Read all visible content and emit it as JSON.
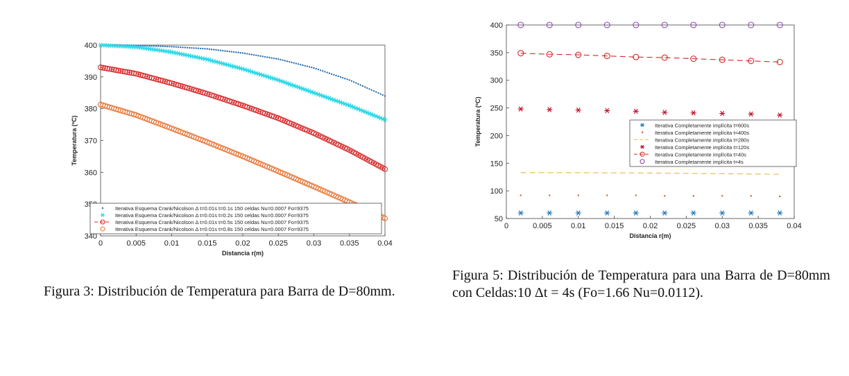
{
  "captions": {
    "fig3": "Figura 3: Distribución de Temperatura para Barra de D=80mm.",
    "fig5": "Figura 5: Distribución de Temperatura para una Barra de D=80mm con Celdas:10 Δt = 4s (Fo=1.66 Nu=0.0112)."
  },
  "chart_data": [
    {
      "type": "scatter",
      "title": "",
      "xlabel": "Distancia r(m)",
      "ylabel": "Temperatura (ºC)",
      "xlim": [
        0,
        0.04
      ],
      "ylim": [
        340,
        400
      ],
      "xticks": [
        "0",
        "0.005",
        "0.01",
        "0.015",
        "0.02",
        "0.025",
        "0.03",
        "0.035",
        "0.04"
      ],
      "yticks": [
        "340",
        "350",
        "360",
        "370",
        "380",
        "390",
        "400"
      ],
      "legend_position": "bottom",
      "series": [
        {
          "name": "Iterativa Esquema Crank/Nicolson Δ t=0.01s t=0.1s 150 celdas Nu=0.0007 Fo=9375",
          "marker": "dot",
          "line": "none",
          "color": "#2b6fb0",
          "x": [
            0,
            0.005,
            0.01,
            0.015,
            0.02,
            0.025,
            0.03,
            0.035,
            0.04
          ],
          "y": [
            400,
            399.9,
            399.5,
            398.8,
            397.5,
            395.6,
            392.8,
            389.0,
            384.0
          ]
        },
        {
          "name": "Iterativa Esquema Crank/Nicolson Δ t=0.01s t=0.2s 150 celdas Nu=0.0007 Fo=9375",
          "marker": "asterisk",
          "line": "none",
          "color": "#2fd9e6",
          "x": [
            0,
            0.005,
            0.01,
            0.015,
            0.02,
            0.025,
            0.03,
            0.035,
            0.04
          ],
          "y": [
            400,
            399.4,
            397.8,
            395.5,
            392.5,
            389.0,
            385.0,
            381.0,
            376.5
          ]
        },
        {
          "name": "Iterativa Esquema Crank/Nicolson Δ t=0.01s t=0.5s 150 celdas Nu=0.0007 Fo=9375",
          "marker": "circle",
          "line": "dashed",
          "color": "#d62728",
          "x": [
            0,
            0.005,
            0.01,
            0.015,
            0.02,
            0.025,
            0.03,
            0.035,
            0.04
          ],
          "y": [
            393,
            391.0,
            388.0,
            384.7,
            381.0,
            377.0,
            372.3,
            367.0,
            361.0
          ]
        },
        {
          "name": "Iterativa Esquema Crank/Nicolson Δ t=0.01s t=0.8s 150 celdas Nu=0.0007 Fo=9375",
          "marker": "circle",
          "line": "none",
          "color": "#e8783a",
          "x": [
            0,
            0.005,
            0.01,
            0.015,
            0.02,
            0.025,
            0.03,
            0.035,
            0.04
          ],
          "y": [
            381.3,
            378.0,
            373.8,
            369.5,
            365.0,
            360.3,
            355.5,
            350.6,
            345.5
          ]
        }
      ]
    },
    {
      "type": "scatter",
      "title": "",
      "xlabel": "Distancia r(m)",
      "ylabel": "Temperatura (ºC)",
      "xlim": [
        0,
        0.04
      ],
      "ylim": [
        50,
        400
      ],
      "xticks": [
        "0",
        "0.005",
        "0.01",
        "0.015",
        "0.02",
        "0.025",
        "0.03",
        "0.035",
        "0.04"
      ],
      "yticks": [
        "50",
        "100",
        "150",
        "200",
        "250",
        "300",
        "350",
        "400"
      ],
      "legend_position": "right",
      "series": [
        {
          "name": "Iterativa Completamente implícita t=600s",
          "marker": "asterisk",
          "line": "none",
          "color": "#1f77b4",
          "x": [
            0.002,
            0.006,
            0.01,
            0.014,
            0.018,
            0.022,
            0.026,
            0.03,
            0.034,
            0.038
          ],
          "y": [
            60,
            60,
            60,
            60,
            60,
            60,
            60,
            60,
            60,
            60
          ]
        },
        {
          "name": "Iterativa Completamente implícita t=400s",
          "marker": "dot",
          "line": "none",
          "color": "#d95319",
          "x": [
            0.002,
            0.006,
            0.01,
            0.014,
            0.018,
            0.022,
            0.026,
            0.03,
            0.034,
            0.038
          ],
          "y": [
            92,
            92,
            92,
            92,
            92,
            91,
            91,
            91,
            91,
            90
          ]
        },
        {
          "name": "Iterativa Completamente implícita t=280s",
          "marker": "none",
          "line": "dashed",
          "color": "#e6b84a",
          "x": [
            0.002,
            0.006,
            0.01,
            0.014,
            0.018,
            0.022,
            0.026,
            0.03,
            0.034,
            0.038
          ],
          "y": [
            133,
            133,
            133,
            132.5,
            132.5,
            132,
            131.5,
            131,
            130.5,
            130
          ]
        },
        {
          "name": "Iterativa Completamente implícita t=120s",
          "marker": "asterisk",
          "line": "none",
          "color": "#c0102a",
          "x": [
            0.002,
            0.006,
            0.01,
            0.014,
            0.018,
            0.022,
            0.026,
            0.03,
            0.034,
            0.038
          ],
          "y": [
            248,
            247,
            246,
            245,
            244,
            242,
            241,
            240,
            239,
            237
          ]
        },
        {
          "name": "Iterativa Completamente implícita t=40s",
          "marker": "circle",
          "line": "dashed",
          "color": "#d62728",
          "x": [
            0.002,
            0.006,
            0.01,
            0.014,
            0.018,
            0.022,
            0.026,
            0.03,
            0.034,
            0.038
          ],
          "y": [
            349,
            347,
            346,
            344,
            342,
            341,
            339,
            337,
            335,
            333
          ]
        },
        {
          "name": "Iterativa Completamente implícita t=4s",
          "marker": "circle",
          "line": "none",
          "color": "#8e44ad",
          "x": [
            0.002,
            0.006,
            0.01,
            0.014,
            0.018,
            0.022,
            0.026,
            0.03,
            0.034,
            0.038
          ],
          "y": [
            400,
            400,
            400,
            400,
            400,
            400,
            400,
            400,
            400,
            400
          ]
        }
      ]
    }
  ]
}
